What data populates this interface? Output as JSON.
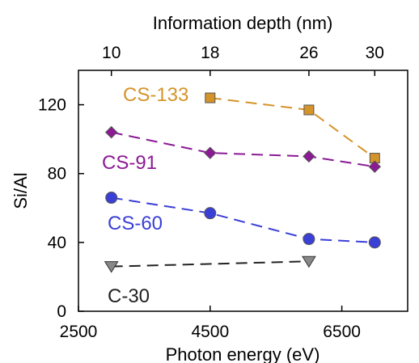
{
  "chart_data": {
    "type": "line",
    "title": "",
    "xlabel": "Photon energy (eV)",
    "ylabel": "Si/Al",
    "top_xlabel": "Information depth (nm)",
    "xlim": [
      2500,
      7500
    ],
    "ylim": [
      0,
      140
    ],
    "x_ticks": [
      "2500",
      "4500",
      "6500"
    ],
    "y_ticks": [
      "0",
      "40",
      "80",
      "120"
    ],
    "top_ticks": [
      {
        "label": "10",
        "energy": 3000
      },
      {
        "label": "18",
        "energy": 4500
      },
      {
        "label": "26",
        "energy": 6000
      },
      {
        "label": "30",
        "energy": 7000
      }
    ],
    "grid": false,
    "series": [
      {
        "name": "CS-133",
        "color": "#D4942A",
        "marker": "square",
        "x": [
          4500,
          6000,
          7000
        ],
        "y": [
          124,
          117,
          89
        ]
      },
      {
        "name": "CS-91",
        "color": "#8B1A95",
        "marker": "diamond",
        "x": [
          3000,
          4500,
          6000,
          7000
        ],
        "y": [
          104,
          92,
          90,
          84
        ]
      },
      {
        "name": "CS-60",
        "color": "#3A3FD6",
        "marker": "circle",
        "x": [
          3000,
          4500,
          6000,
          7000
        ],
        "y": [
          66,
          57,
          42,
          40
        ]
      },
      {
        "name": "C-30",
        "color": "#222222",
        "marker": "triangle-down",
        "x": [
          3000,
          6000
        ],
        "y": [
          26,
          29
        ]
      }
    ]
  }
}
